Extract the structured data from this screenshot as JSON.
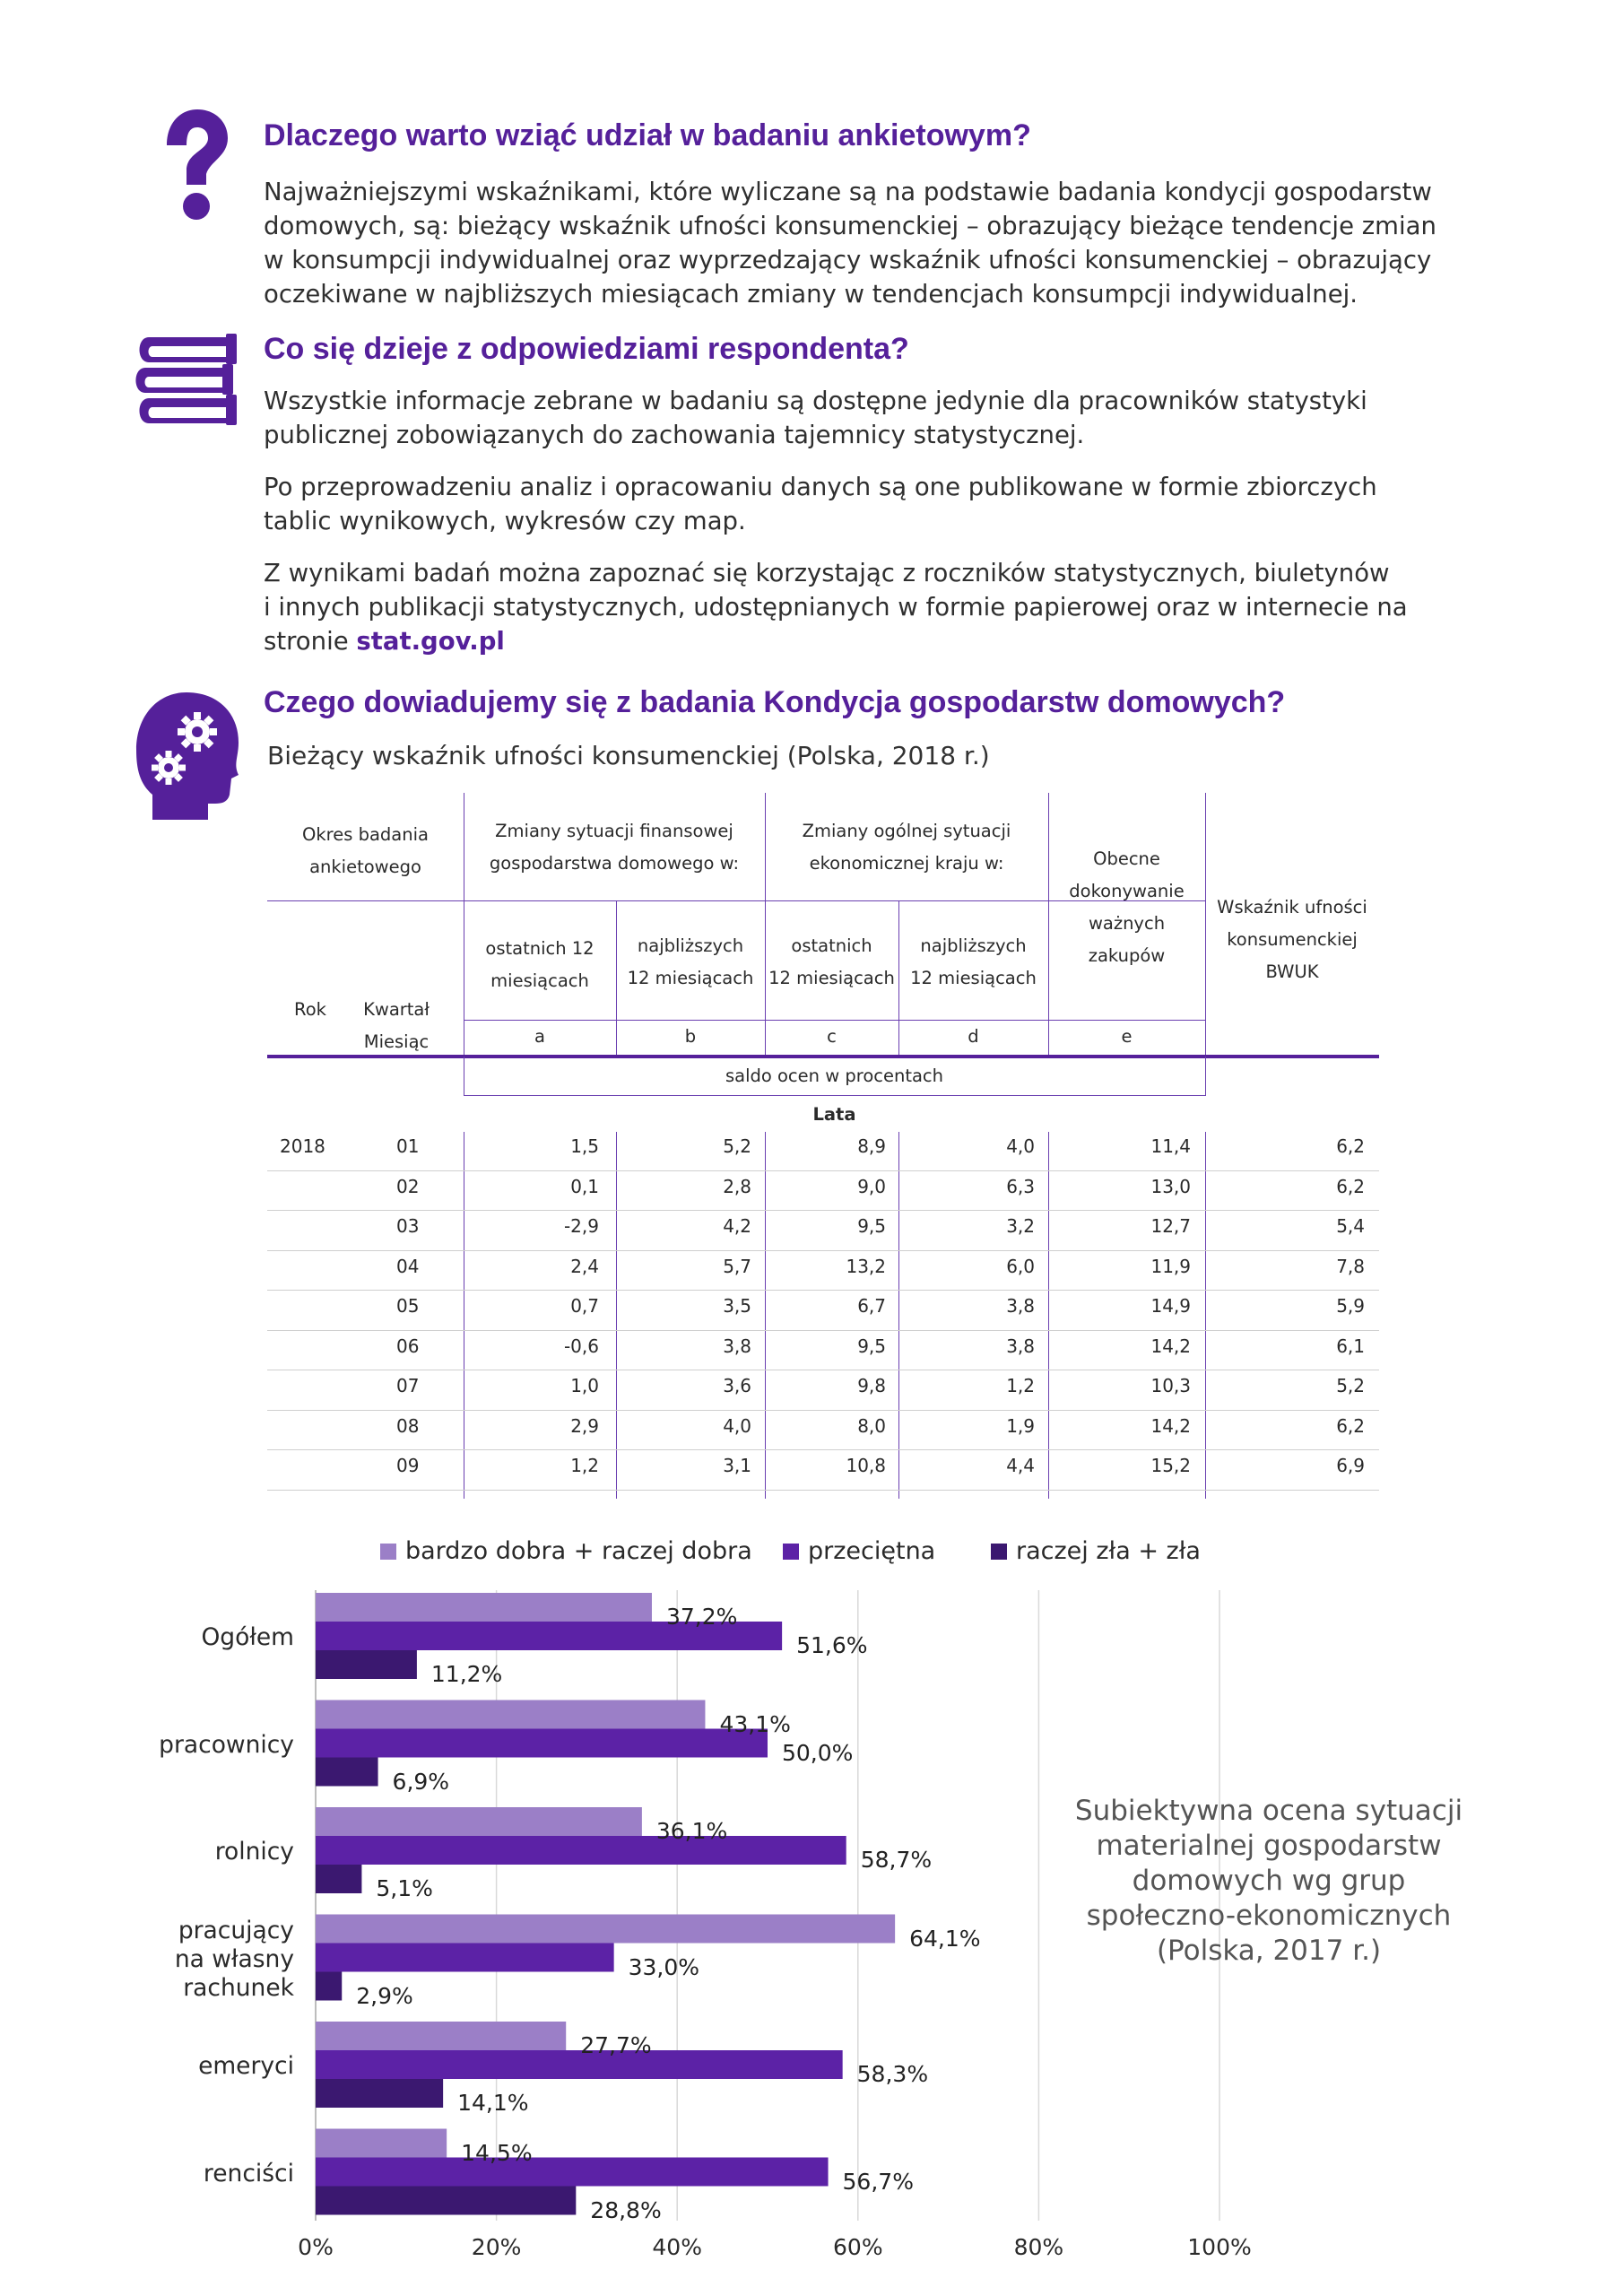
{
  "section1": {
    "icon": "question-icon",
    "heading": "Dlaczego warto wziąć udział w badaniu ankietowym?",
    "lines": [
      "Najważniejszymi wskaźnikami, które wyliczane są na podstawie badania kondycji gospodarstw",
      "domowych, są: bieżący wskaźnik ufności konsumenckiej – obrazujący bieżące tendencje zmian",
      "w konsumpcji indywidualnej oraz wyprzedzający wskaźnik ufności konsumenckiej – obrazujący",
      "oczekiwane w najbliższych miesiącach zmiany w tendencjach konsumpcji indywidualnej."
    ]
  },
  "section2": {
    "icon": "books-icon",
    "heading": "Co się dzieje z odpowiedziami respondenta?",
    "para1": [
      "Wszystkie informacje zebrane w badaniu są dostępne jedynie dla pracowników statystyki",
      "publicznej zobowiązanych do zachowania tajemnicy statystycznej."
    ],
    "para2": [
      "Po przeprowadzeniu analiz i opracowaniu danych są one publikowane w formie zbiorczych",
      "tablic wynikowych, wykresów czy map."
    ],
    "para3": [
      "Z wynikami badań można zapoznać się korzystając z roczników statystycznych, biuletynów",
      "i innych publikacji statystycznych, udostępnianych w formie papierowej oraz w internecie na"
    ],
    "para3_last_prefix": "stronie ",
    "para3_link": "stat.gov.pl"
  },
  "section3": {
    "icon": "head-gears-icon",
    "heading": "Czego dowiadujemy się z badania Kondycja gospodarstw domowych?"
  },
  "table": {
    "title": "Bieżący wskaźnik ufności konsumenckiej (Polska, 2018 r.)",
    "headers": {
      "okres": [
        "Okres badania",
        "ankietowego"
      ],
      "rok": "Rok",
      "kwartal": [
        "Kwartał",
        "Miesiąc"
      ],
      "finansowe": [
        "Zmiany sytuacji finansowej",
        "gospodarstwa domowego w:"
      ],
      "ogolne": [
        "Zmiany ogólnej sytuacji",
        "ekonomicznej kraju w:"
      ],
      "a": [
        "ostatnich 12",
        "miesiącach"
      ],
      "b": [
        "najbliższych",
        "12 miesiącach"
      ],
      "c": [
        "ostatnich",
        "12 miesiącach"
      ],
      "d": [
        "najbliższych",
        "12 miesiącach"
      ],
      "e": [
        "Obecne",
        "dokonywanie",
        "ważnych",
        "zakupów"
      ],
      "bwuk": [
        "Wskaźnik ufności",
        "konsumenckiej",
        "BWUK"
      ],
      "letters": [
        "a",
        "b",
        "c",
        "d",
        "e"
      ],
      "saldo": "saldo ocen w procentach",
      "lata": "Lata"
    },
    "rows": [
      {
        "rok": "2018",
        "m": "01",
        "a": "1,5",
        "b": "5,2",
        "c": "8,9",
        "d": "4,0",
        "e": "11,4",
        "w": "6,2"
      },
      {
        "rok": "",
        "m": "02",
        "a": "0,1",
        "b": "2,8",
        "c": "9,0",
        "d": "6,3",
        "e": "13,0",
        "w": "6,2"
      },
      {
        "rok": "",
        "m": "03",
        "a": "-2,9",
        "b": "4,2",
        "c": "9,5",
        "d": "3,2",
        "e": "12,7",
        "w": "5,4"
      },
      {
        "rok": "",
        "m": "04",
        "a": "2,4",
        "b": "5,7",
        "c": "13,2",
        "d": "6,0",
        "e": "11,9",
        "w": "7,8"
      },
      {
        "rok": "",
        "m": "05",
        "a": "0,7",
        "b": "3,5",
        "c": "6,7",
        "d": "3,8",
        "e": "14,9",
        "w": "5,9"
      },
      {
        "rok": "",
        "m": "06",
        "a": "-0,6",
        "b": "3,8",
        "c": "9,5",
        "d": "3,8",
        "e": "14,2",
        "w": "6,1"
      },
      {
        "rok": "",
        "m": "07",
        "a": "1,0",
        "b": "3,6",
        "c": "9,8",
        "d": "1,2",
        "e": "10,3",
        "w": "5,2"
      },
      {
        "rok": "",
        "m": "08",
        "a": "2,9",
        "b": "4,0",
        "c": "8,0",
        "d": "1,9",
        "e": "14,2",
        "w": "6,2"
      },
      {
        "rok": "",
        "m": "09",
        "a": "1,2",
        "b": "3,1",
        "c": "10,8",
        "d": "4,4",
        "e": "15,2",
        "w": "6,9"
      }
    ]
  },
  "chart_data": {
    "type": "bar",
    "orientation": "horizontal",
    "title_lines": [
      "Subiektywna ocena sytuacji",
      "materialnej gospodarstw",
      "domowych wg grup",
      "społeczno-ekonomicznych",
      "(Polska, 2017 r.)"
    ],
    "categories": [
      [
        "Ogółem"
      ],
      [
        "pracownicy"
      ],
      [
        "rolnicy"
      ],
      [
        "pracujący",
        "na własny",
        "rachunek"
      ],
      [
        "emeryci"
      ],
      [
        "renciści"
      ]
    ],
    "series": [
      {
        "name": "bardzo dobra + raczej dobra",
        "color": "#9b7fc7",
        "values": [
          37.2,
          43.1,
          36.1,
          64.1,
          27.7,
          14.5
        ],
        "labels": [
          "37,2%",
          "43,1%",
          "36,1%",
          "64,1%",
          "27,7%",
          "14,5%"
        ]
      },
      {
        "name": "przeciętna",
        "color": "#5c22a6",
        "values": [
          51.6,
          50.0,
          58.7,
          33.0,
          58.3,
          56.7
        ],
        "labels": [
          "51,6%",
          "50,0%",
          "58,7%",
          "33,0%",
          "58,3%",
          "56,7%"
        ]
      },
      {
        "name": "raczej zła + zła",
        "color": "#3b1870",
        "values": [
          11.2,
          6.9,
          5.1,
          2.9,
          14.1,
          28.8
        ],
        "labels": [
          "11,2%",
          "6,9%",
          "5,1%",
          "2,9%",
          "14,1%",
          "28,8%"
        ]
      }
    ],
    "xlim": [
      0,
      100
    ],
    "xticks": [
      "0%",
      "20%",
      "40%",
      "60%",
      "80%",
      "100%"
    ],
    "grid": true,
    "legend_position": "top"
  }
}
